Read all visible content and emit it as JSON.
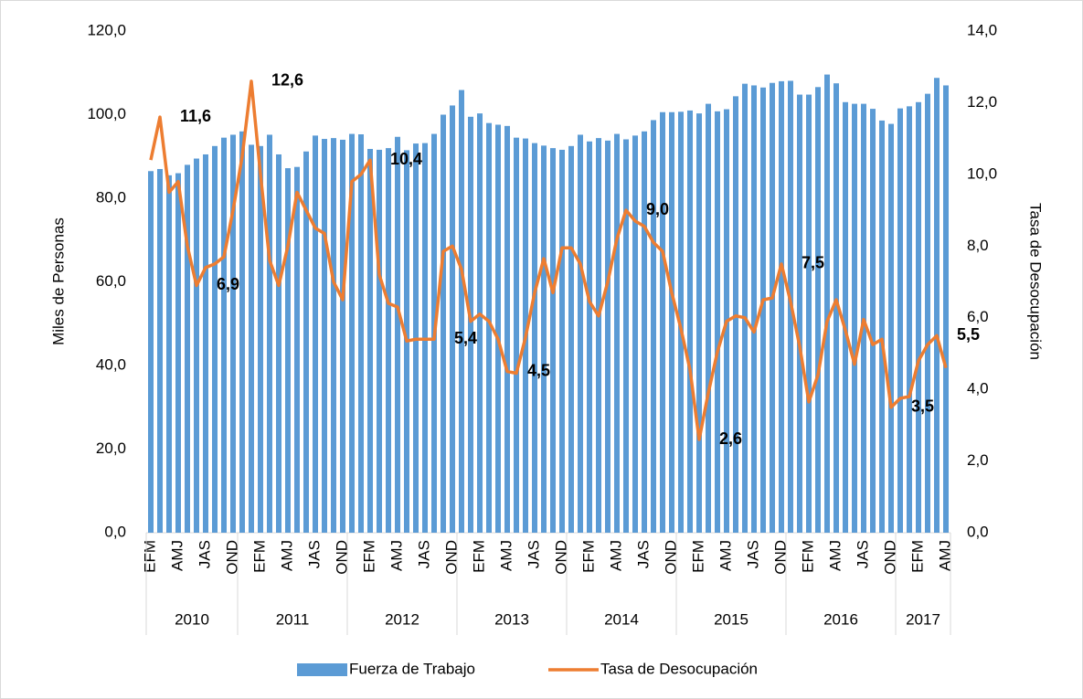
{
  "chart_data": {
    "type": "bar",
    "y_label": "Miles de Personas",
    "y2_label": "Tasa de Desocupación",
    "categories": [
      "EFM",
      null,
      null,
      "AMJ",
      null,
      null,
      "JAS",
      null,
      null,
      "OND",
      null,
      null,
      "EFM",
      null,
      null,
      "AMJ",
      null,
      null,
      "JAS",
      null,
      null,
      "OND",
      null,
      null,
      "EFM",
      null,
      null,
      "AMJ",
      null,
      null,
      "JAS",
      null,
      null,
      "OND",
      null,
      null,
      "EFM",
      null,
      null,
      "AMJ",
      null,
      null,
      "JAS",
      null,
      null,
      "OND",
      null,
      null,
      "EFM",
      null,
      null,
      "AMJ",
      null,
      null,
      "JAS",
      null,
      null,
      "OND",
      null,
      null,
      "EFM",
      null,
      null,
      "AMJ",
      null,
      null,
      "JAS",
      null,
      null,
      "OND",
      null,
      null,
      "EFM",
      null,
      null,
      "AMJ",
      null,
      null,
      "JAS",
      null,
      null,
      "OND",
      null,
      null,
      "EFM",
      null,
      null,
      "AMJ"
    ],
    "years": [
      "2010",
      "2011",
      "2012",
      "2013",
      "2014",
      "2015",
      "2016",
      "2017"
    ],
    "year_sizes": [
      10,
      12,
      12,
      12,
      12,
      12,
      12,
      6
    ],
    "series": [
      {
        "name": "Fuerza de Trabajo",
        "type": "bar",
        "color": "#5b9bd5",
        "values": [
          86.5,
          87.0,
          85.5,
          86.0,
          88.0,
          89.5,
          90.5,
          92.5,
          94.5,
          95.2,
          96.0,
          92.8,
          92.5,
          95.2,
          90.5,
          87.2,
          87.5,
          91.2,
          95.0,
          94.2,
          94.4,
          94.0,
          95.4,
          95.3,
          91.8,
          91.6,
          92.0,
          94.7,
          91.5,
          93.1,
          93.2,
          95.4,
          100.0,
          102.2,
          105.9,
          99.5,
          100.3,
          98.0,
          97.6,
          97.3,
          94.5,
          94.3,
          93.2,
          92.6,
          92.0,
          91.6,
          92.5,
          95.2,
          93.6,
          94.4,
          93.8,
          95.4,
          94.1,
          95.0,
          96.0,
          98.7,
          100.6,
          100.6,
          100.7,
          101.0,
          100.3,
          102.6,
          100.8,
          101.3,
          104.4,
          107.4,
          107.0,
          106.5,
          107.6,
          108.0,
          108.1,
          104.8,
          104.8,
          106.6,
          109.6,
          107.5,
          103.0,
          102.6,
          102.6,
          101.4,
          98.6,
          97.8,
          101.5,
          102.0,
          103.0,
          105.0,
          108.8,
          107.0
        ]
      },
      {
        "name": "Tasa de Desocupación",
        "type": "line",
        "axis": "y2",
        "color": "#ed7d31",
        "values": [
          10.4,
          11.6,
          9.5,
          9.8,
          8.0,
          6.9,
          7.4,
          7.5,
          7.7,
          9.0,
          10.5,
          12.6,
          10.0,
          7.6,
          6.9,
          8.0,
          9.5,
          9.0,
          8.5,
          8.35,
          7.0,
          6.5,
          9.8,
          10.0,
          10.4,
          7.2,
          6.4,
          6.3,
          5.35,
          5.4,
          5.4,
          5.4,
          7.85,
          8.0,
          7.35,
          5.9,
          6.1,
          5.9,
          5.4,
          4.5,
          4.45,
          5.45,
          6.7,
          7.65,
          6.7,
          7.95,
          7.95,
          7.5,
          6.45,
          6.05,
          7.0,
          8.2,
          9.0,
          8.7,
          8.55,
          8.1,
          7.85,
          6.7,
          5.7,
          4.55,
          2.6,
          3.9,
          5.05,
          5.9,
          6.05,
          6.0,
          5.6,
          6.5,
          6.55,
          7.5,
          6.45,
          5.2,
          3.65,
          4.4,
          5.9,
          6.5,
          5.65,
          4.7,
          5.95,
          5.25,
          5.4,
          3.5,
          3.75,
          3.8,
          4.8,
          5.25,
          5.5,
          4.6
        ],
        "value_labels": [
          null,
          "11,6",
          null,
          null,
          null,
          "6,9",
          null,
          null,
          null,
          null,
          null,
          "12,6",
          null,
          null,
          null,
          null,
          null,
          null,
          null,
          null,
          null,
          null,
          null,
          null,
          "10,4",
          null,
          null,
          null,
          null,
          null,
          null,
          "5,4",
          null,
          null,
          null,
          null,
          null,
          null,
          null,
          "4,5",
          null,
          null,
          null,
          null,
          null,
          null,
          null,
          null,
          null,
          null,
          null,
          null,
          "9,0",
          null,
          null,
          null,
          null,
          null,
          null,
          null,
          "2,6",
          null,
          null,
          null,
          null,
          null,
          null,
          null,
          null,
          "7,5",
          null,
          null,
          null,
          null,
          null,
          null,
          null,
          null,
          null,
          null,
          null,
          "3,5",
          null,
          null,
          null,
          null,
          "5,5",
          null
        ]
      }
    ],
    "ylim": [
      0,
      120
    ],
    "yticks": [
      {
        "value": 0,
        "label": "0,0"
      },
      {
        "value": 20,
        "label": "20,0"
      },
      {
        "value": 40,
        "label": "40,0"
      },
      {
        "value": 60,
        "label": "60,0"
      },
      {
        "value": 80,
        "label": "80,0"
      },
      {
        "value": 100,
        "label": "100,0"
      },
      {
        "value": 120,
        "label": "120,0"
      }
    ],
    "y2lim": [
      0,
      14
    ],
    "y2ticks": [
      {
        "value": 0,
        "label": "0,0"
      },
      {
        "value": 2,
        "label": "2,0"
      },
      {
        "value": 4,
        "label": "4,0"
      },
      {
        "value": 6,
        "label": "6,0"
      },
      {
        "value": 8,
        "label": "8,0"
      },
      {
        "value": 10,
        "label": "10,0"
      },
      {
        "value": 12,
        "label": "12,0"
      },
      {
        "value": 14,
        "label": "14,0"
      }
    ],
    "legend": "bottom"
  }
}
